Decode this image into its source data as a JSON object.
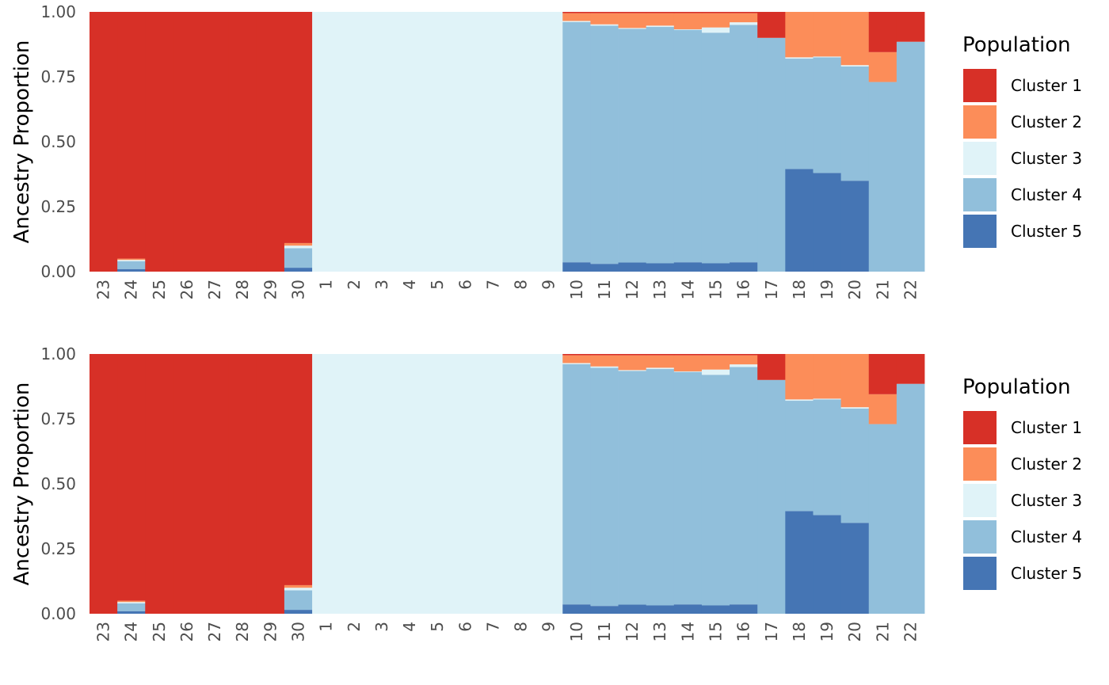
{
  "chart_data": [
    {
      "type": "bar",
      "stacked": true,
      "ylabel": "Ancestry Proportion",
      "ylim": [
        0,
        1
      ],
      "yticks": [
        "0.00",
        "0.25",
        "0.50",
        "0.75",
        "1.00"
      ],
      "categories": [
        "23",
        "24",
        "25",
        "26",
        "27",
        "28",
        "29",
        "30",
        "1",
        "2",
        "3",
        "4",
        "5",
        "6",
        "7",
        "8",
        "9",
        "10",
        "11",
        "12",
        "13",
        "14",
        "15",
        "16",
        "17",
        "18",
        "19",
        "20",
        "21",
        "22"
      ],
      "series": [
        {
          "name": "Cluster 5",
          "color": "#4575b4",
          "values": [
            0,
            0.01,
            0,
            0,
            0,
            0,
            0,
            0.015,
            0,
            0,
            0,
            0,
            0,
            0,
            0,
            0,
            0,
            0.036,
            0.03,
            0.035,
            0.032,
            0.036,
            0.032,
            0.036,
            0,
            0.395,
            0.38,
            0.35,
            0,
            0
          ]
        },
        {
          "name": "Cluster 4",
          "color": "#91bfdb",
          "values": [
            0,
            0.03,
            0,
            0,
            0,
            0,
            0,
            0.075,
            0,
            0,
            0,
            0,
            0,
            0,
            0,
            0,
            0,
            0.925,
            0.917,
            0.9,
            0.91,
            0.895,
            0.888,
            0.914,
            0.9,
            0.425,
            0.445,
            0.44,
            0.73,
            0.885
          ]
        },
        {
          "name": "Cluster 3",
          "color": "#e0f3f8",
          "values": [
            0,
            0.005,
            0,
            0,
            0,
            0,
            0,
            0.01,
            1,
            1,
            1,
            1,
            1,
            1,
            1,
            1,
            1,
            0.004,
            0.005,
            0.003,
            0.005,
            0.002,
            0.02,
            0.01,
            0,
            0.005,
            0.003,
            0.005,
            0,
            0
          ]
        },
        {
          "name": "Cluster 2",
          "color": "#fc8d59",
          "values": [
            0,
            0.005,
            0,
            0,
            0,
            0,
            0,
            0.01,
            0,
            0,
            0,
            0,
            0,
            0,
            0,
            0,
            0,
            0.03,
            0.043,
            0.057,
            0.048,
            0.062,
            0.055,
            0.035,
            0,
            0.175,
            0.172,
            0.205,
            0.115,
            0
          ]
        },
        {
          "name": "Cluster 1",
          "color": "#d73027",
          "values": [
            1,
            0.95,
            1,
            1,
            1,
            1,
            1,
            0.89,
            0,
            0,
            0,
            0,
            0,
            0,
            0,
            0,
            0,
            0.005,
            0.005,
            0.005,
            0.005,
            0.005,
            0.005,
            0.005,
            0.1,
            0,
            0,
            0,
            0.155,
            0.115
          ]
        }
      ],
      "legend": {
        "title": "Population",
        "position": "right",
        "order": [
          "Cluster 1",
          "Cluster 2",
          "Cluster 3",
          "Cluster 4",
          "Cluster 5"
        ]
      }
    },
    {
      "type": "bar",
      "stacked": true,
      "ylabel": "Ancestry Proportion",
      "ylim": [
        0,
        1
      ],
      "yticks": [
        "0.00",
        "0.25",
        "0.50",
        "0.75",
        "1.00"
      ],
      "categories": [
        "23",
        "24",
        "25",
        "26",
        "27",
        "28",
        "29",
        "30",
        "1",
        "2",
        "3",
        "4",
        "5",
        "6",
        "7",
        "8",
        "9",
        "10",
        "11",
        "12",
        "13",
        "14",
        "15",
        "16",
        "17",
        "18",
        "19",
        "20",
        "21",
        "22"
      ],
      "series": [
        {
          "name": "Cluster 5",
          "color": "#4575b4",
          "values": [
            0,
            0.01,
            0,
            0,
            0,
            0,
            0,
            0.015,
            0,
            0,
            0,
            0,
            0,
            0,
            0,
            0,
            0,
            0.036,
            0.03,
            0.035,
            0.032,
            0.036,
            0.032,
            0.036,
            0,
            0.395,
            0.38,
            0.35,
            0,
            0
          ]
        },
        {
          "name": "Cluster 4",
          "color": "#91bfdb",
          "values": [
            0,
            0.03,
            0,
            0,
            0,
            0,
            0,
            0.075,
            0,
            0,
            0,
            0,
            0,
            0,
            0,
            0,
            0,
            0.925,
            0.917,
            0.9,
            0.91,
            0.895,
            0.888,
            0.914,
            0.9,
            0.425,
            0.445,
            0.44,
            0.73,
            0.885
          ]
        },
        {
          "name": "Cluster 3",
          "color": "#e0f3f8",
          "values": [
            0,
            0.005,
            0,
            0,
            0,
            0,
            0,
            0.01,
            1,
            1,
            1,
            1,
            1,
            1,
            1,
            1,
            1,
            0.004,
            0.005,
            0.003,
            0.005,
            0.002,
            0.02,
            0.01,
            0,
            0.005,
            0.003,
            0.005,
            0,
            0
          ]
        },
        {
          "name": "Cluster 2",
          "color": "#fc8d59",
          "values": [
            0,
            0.005,
            0,
            0,
            0,
            0,
            0,
            0.01,
            0,
            0,
            0,
            0,
            0,
            0,
            0,
            0,
            0,
            0.03,
            0.043,
            0.057,
            0.048,
            0.062,
            0.055,
            0.035,
            0,
            0.175,
            0.172,
            0.205,
            0.115,
            0
          ]
        },
        {
          "name": "Cluster 1",
          "color": "#d73027",
          "values": [
            1,
            0.95,
            1,
            1,
            1,
            1,
            1,
            0.89,
            0,
            0,
            0,
            0,
            0,
            0,
            0,
            0,
            0,
            0.005,
            0.005,
            0.005,
            0.005,
            0.005,
            0.005,
            0.005,
            0.1,
            0,
            0,
            0,
            0.155,
            0.115
          ]
        }
      ],
      "legend": {
        "title": "Population",
        "position": "right",
        "order": [
          "Cluster 1",
          "Cluster 2",
          "Cluster 3",
          "Cluster 4",
          "Cluster 5"
        ]
      }
    }
  ]
}
